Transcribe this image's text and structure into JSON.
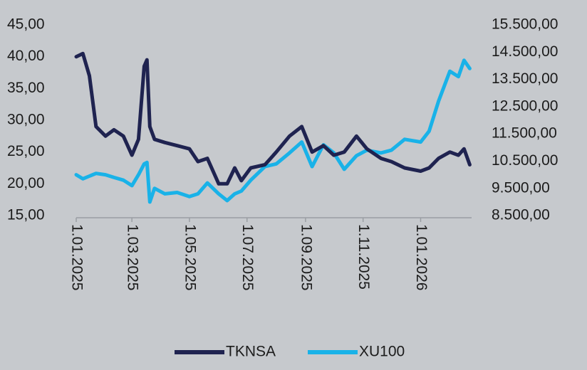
{
  "chart_data": {
    "type": "line",
    "x": [
      "2025-01-01",
      "2025-01-08",
      "2025-01-15",
      "2025-01-22",
      "2025-02-01",
      "2025-02-10",
      "2025-02-20",
      "2025-03-01",
      "2025-03-08",
      "2025-03-14",
      "2025-03-17",
      "2025-03-20",
      "2025-03-25",
      "2025-04-05",
      "2025-04-18",
      "2025-05-01",
      "2025-05-10",
      "2025-05-20",
      "2025-06-01",
      "2025-06-10",
      "2025-06-18",
      "2025-06-25",
      "2025-07-05",
      "2025-07-20",
      "2025-08-01",
      "2025-08-15",
      "2025-08-28",
      "2025-09-08",
      "2025-09-20",
      "2025-10-01",
      "2025-10-12",
      "2025-10-25",
      "2025-11-05",
      "2025-11-20",
      "2025-12-01",
      "2025-12-15",
      "2026-01-01",
      "2026-01-10",
      "2026-01-20",
      "2026-02-01",
      "2026-02-10",
      "2026-02-16",
      "2026-02-22"
    ],
    "series": [
      {
        "name": "TKNSA",
        "color": "#1f2350",
        "axis": "y",
        "values": [
          40,
          40.5,
          37,
          29,
          27.5,
          28.5,
          27.5,
          24.5,
          27,
          38.5,
          39.5,
          29,
          27,
          26.5,
          26,
          25.5,
          23.5,
          24,
          20,
          20,
          22.5,
          20.5,
          22.5,
          23,
          25,
          27.5,
          29,
          25,
          26,
          24.5,
          25,
          27.5,
          25.5,
          24,
          23.5,
          22.5,
          22,
          22.5,
          24,
          25,
          24.5,
          25.5,
          23
        ]
      },
      {
        "name": "XU100",
        "color": "#19b2e8",
        "axis": "y2",
        "values": [
          10000,
          9850,
          9950,
          10050,
          10000,
          9900,
          9800,
          9600,
          10000,
          10400,
          10450,
          9000,
          9500,
          9300,
          9350,
          9200,
          9300,
          9700,
          9300,
          9050,
          9300,
          9400,
          9800,
          10300,
          10400,
          10800,
          11200,
          10300,
          11100,
          10800,
          10200,
          10700,
          10900,
          10800,
          10900,
          11300,
          11200,
          11600,
          12700,
          13800,
          13600,
          14200,
          13900
        ]
      }
    ],
    "xlim": [
      "2025-01-01",
      "2026-02-24"
    ],
    "xticks": [
      {
        "value": "2025-01-01",
        "label": "1.01.2025"
      },
      {
        "value": "2025-03-01",
        "label": "1.03.2025"
      },
      {
        "value": "2025-05-01",
        "label": "1.05.2025"
      },
      {
        "value": "2025-07-01",
        "label": "1.07.2025"
      },
      {
        "value": "2025-09-01",
        "label": "1.09.2025"
      },
      {
        "value": "2025-11-01",
        "label": "1.11.2025"
      },
      {
        "value": "2026-01-01",
        "label": "1.01.2026"
      }
    ],
    "ylim": [
      15,
      45
    ],
    "yticks": [
      {
        "value": 15,
        "label": "15,00"
      },
      {
        "value": 20,
        "label": "20,00"
      },
      {
        "value": 25,
        "label": "25,00"
      },
      {
        "value": 30,
        "label": "30,00"
      },
      {
        "value": 35,
        "label": "35,00"
      },
      {
        "value": 40,
        "label": "40,00"
      },
      {
        "value": 45,
        "label": "45,00"
      }
    ],
    "y2lim": [
      8500,
      15500
    ],
    "y2ticks": [
      {
        "value": 8500,
        "label": "8.500,00"
      },
      {
        "value": 9500,
        "label": "9.500,00"
      },
      {
        "value": 10500,
        "label": "10.500,00"
      },
      {
        "value": 11500,
        "label": "11.500,00"
      },
      {
        "value": 12500,
        "label": "12.500,00"
      },
      {
        "value": 13500,
        "label": "13.500,00"
      },
      {
        "value": 14500,
        "label": "14.500,00"
      },
      {
        "value": 15500,
        "label": "15.500,00"
      }
    ],
    "legend": "bottom"
  }
}
